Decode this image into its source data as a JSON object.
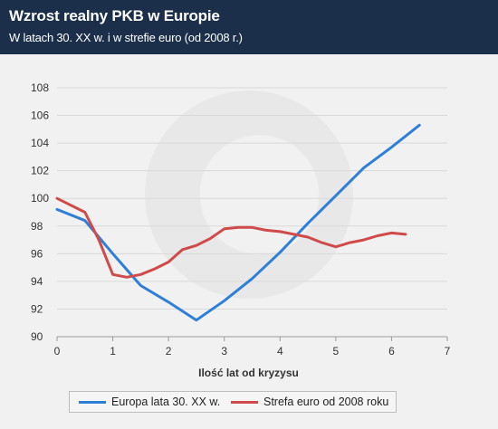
{
  "header": {
    "title": "Wzrost realny PKB w Europie",
    "subtitle": "W latach 30. XX w. i w strefie euro (od 2008 r.)"
  },
  "chart_data": {
    "type": "line",
    "title": "Wzrost realny PKB w Europie",
    "subtitle": "W latach 30. XX w. i w strefie euro (od 2008 r.)",
    "xlabel": "Ilość lat od kryzysu",
    "ylabel": "",
    "xlim": [
      0,
      7
    ],
    "ylim": [
      90,
      108
    ],
    "xticks": [
      0,
      1,
      2,
      3,
      4,
      5,
      6,
      7
    ],
    "yticks": [
      90,
      92,
      94,
      96,
      98,
      100,
      102,
      104,
      106,
      108
    ],
    "grid": "horizontal",
    "legend": "bottom",
    "series": [
      {
        "name": "Europa lata 30. XX w.",
        "color": "#2f7fd6",
        "points": [
          [
            0,
            99.2
          ],
          [
            0.5,
            98.4
          ],
          [
            1,
            96.0
          ],
          [
            1.5,
            93.7
          ],
          [
            2,
            92.5
          ],
          [
            2.5,
            91.2
          ],
          [
            3,
            92.6
          ],
          [
            3.5,
            94.2
          ],
          [
            4,
            96.1
          ],
          [
            4.5,
            98.2
          ],
          [
            5,
            100.2
          ],
          [
            5.5,
            102.2
          ],
          [
            6,
            103.7
          ],
          [
            6.5,
            105.3
          ]
        ]
      },
      {
        "name": "Strefa euro od 2008 roku",
        "color": "#cf4b4b",
        "points": [
          [
            0,
            100.0
          ],
          [
            0.5,
            99.0
          ],
          [
            0.75,
            97.0
          ],
          [
            1,
            94.5
          ],
          [
            1.25,
            94.3
          ],
          [
            1.5,
            94.5
          ],
          [
            1.75,
            94.9
          ],
          [
            2,
            95.4
          ],
          [
            2.25,
            96.3
          ],
          [
            2.5,
            96.6
          ],
          [
            2.75,
            97.1
          ],
          [
            3,
            97.8
          ],
          [
            3.25,
            97.9
          ],
          [
            3.5,
            97.9
          ],
          [
            3.75,
            97.7
          ],
          [
            4,
            97.6
          ],
          [
            4.25,
            97.4
          ],
          [
            4.5,
            97.2
          ],
          [
            4.75,
            96.8
          ],
          [
            5,
            96.5
          ],
          [
            5.25,
            96.8
          ],
          [
            5.5,
            97.0
          ],
          [
            5.75,
            97.3
          ],
          [
            6,
            97.5
          ],
          [
            6.25,
            97.4
          ]
        ]
      }
    ]
  }
}
